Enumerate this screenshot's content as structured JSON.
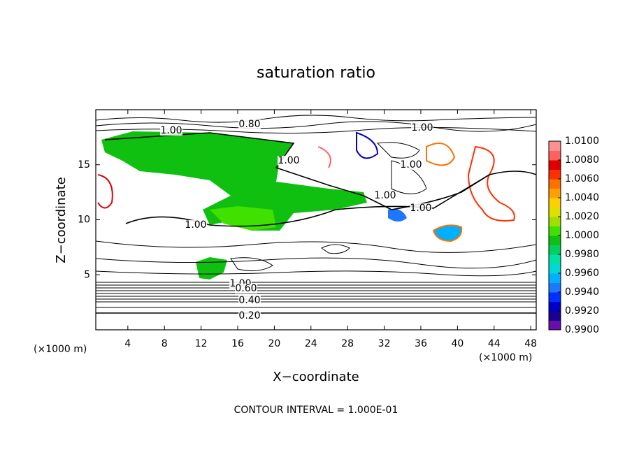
{
  "chart_data": {
    "type": "contour",
    "title": "saturation ratio",
    "x_label": "X−coordinate",
    "y_label": "Z−coordinate",
    "x_unit": "(×1000 m)",
    "y_unit": "(×1000 m)",
    "footnote": "CONTOUR INTERVAL = 1.000E-01",
    "xlim": [
      0.5,
      48.6
    ],
    "ylim": [
      0,
      20
    ],
    "xticks": [
      4,
      8,
      12,
      16,
      20,
      24,
      28,
      32,
      36,
      40,
      44,
      48
    ],
    "yticks": [
      5,
      10,
      15
    ],
    "contour_labels": [
      {
        "value": 0.8,
        "label": "0.80"
      },
      {
        "value": 1,
        "label": "1.00"
      },
      {
        "value": 1,
        "label": "1.00"
      },
      {
        "value": 1,
        "label": "1.00"
      },
      {
        "value": 1,
        "label": "1.00"
      },
      {
        "value": 1,
        "label": "1.00"
      },
      {
        "value": 1,
        "label": "1.00"
      },
      {
        "value": 1,
        "label": "1.00"
      },
      {
        "value": 1,
        "label": "1.00"
      },
      {
        "value": 0.6,
        "label": "0.60"
      },
      {
        "value": 0.4,
        "label": "0.40"
      },
      {
        "value": 0.2,
        "label": "0.20"
      }
    ],
    "colorbar": {
      "lim": [
        0.99,
        1.01
      ],
      "ticks": [
        {
          "value": 0.99,
          "label": "0.9900"
        },
        {
          "value": 0.992,
          "label": "0.9920"
        },
        {
          "value": 0.994,
          "label": "0.9940"
        },
        {
          "value": 0.996,
          "label": "0.9960"
        },
        {
          "value": 0.998,
          "label": "0.9980"
        },
        {
          "value": 1.0,
          "label": "1.0000"
        },
        {
          "value": 1.002,
          "label": "1.0020"
        },
        {
          "value": 1.004,
          "label": "1.0040"
        },
        {
          "value": 1.006,
          "label": "1.0060"
        },
        {
          "value": 1.008,
          "label": "1.0080"
        },
        {
          "value": 1.01,
          "label": "1.0100"
        }
      ],
      "colors": [
        "#6a0dad",
        "#1a0090",
        "#0000c8",
        "#0030ff",
        "#1e78ff",
        "#00b0ff",
        "#00d8d8",
        "#00e0a0",
        "#00d060",
        "#10c010",
        "#40e000",
        "#a0e000",
        "#e0e000",
        "#ffd000",
        "#ffa000",
        "#ff7000",
        "#ff3000",
        "#e00000",
        "#ff6060",
        "#ff9090"
      ]
    }
  }
}
